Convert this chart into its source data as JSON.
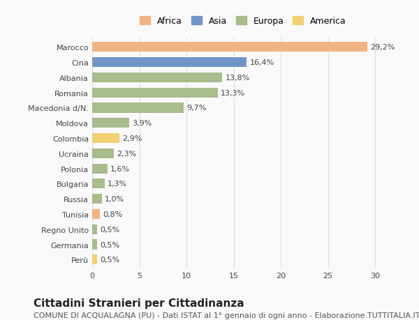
{
  "categories": [
    "Marocco",
    "Cina",
    "Albania",
    "Romania",
    "Macedonia d/N.",
    "Moldova",
    "Colombia",
    "Ucraina",
    "Polonia",
    "Bulgaria",
    "Russia",
    "Tunisia",
    "Regno Unito",
    "Germania",
    "Perù"
  ],
  "values": [
    29.2,
    16.4,
    13.8,
    13.3,
    9.7,
    3.9,
    2.9,
    2.3,
    1.6,
    1.3,
    1.0,
    0.8,
    0.5,
    0.5,
    0.5
  ],
  "labels": [
    "29,2%",
    "16,4%",
    "13,8%",
    "13,3%",
    "9,7%",
    "3,9%",
    "2,9%",
    "2,3%",
    "1,6%",
    "1,3%",
    "1,0%",
    "0,8%",
    "0,5%",
    "0,5%",
    "0,5%"
  ],
  "colors": [
    "#f0b482",
    "#7096c8",
    "#a8bc8c",
    "#a8bc8c",
    "#a8bc8c",
    "#a8bc8c",
    "#f0d070",
    "#a8bc8c",
    "#a8bc8c",
    "#a8bc8c",
    "#a8bc8c",
    "#f0b482",
    "#a8bc8c",
    "#a8bc8c",
    "#f0d070"
  ],
  "legend_labels": [
    "Africa",
    "Asia",
    "Europa",
    "America"
  ],
  "legend_colors": [
    "#f0b482",
    "#7096c8",
    "#a8bc8c",
    "#f0d070"
  ],
  "title": "Cittadini Stranieri per Cittadinanza",
  "subtitle": "COMUNE DI ACQUALAGNA (PU) - Dati ISTAT al 1° gennaio di ogni anno - Elaborazione TUTTITALIA.IT",
  "xlim": [
    0,
    32
  ],
  "xticks": [
    0,
    5,
    10,
    15,
    20,
    25,
    30
  ],
  "background_color": "#f9f9f9",
  "grid_color": "#dddddd",
  "bar_height": 0.65,
  "title_fontsize": 11,
  "subtitle_fontsize": 8,
  "label_fontsize": 8,
  "tick_fontsize": 8,
  "legend_fontsize": 9
}
